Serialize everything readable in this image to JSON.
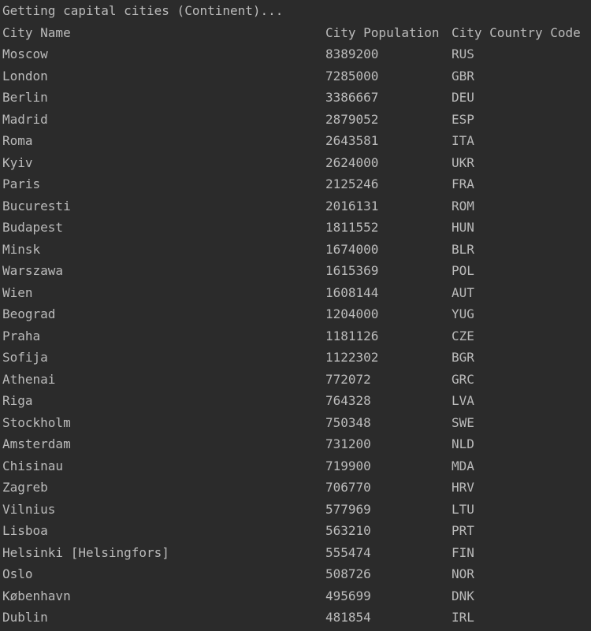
{
  "console": {
    "status_line": "Getting capital cities (Continent)...",
    "headers": {
      "name": "City Name",
      "population": "City Population",
      "code": "City Country Code"
    },
    "rows": [
      {
        "name": "Moscow",
        "population": "8389200",
        "code": "RUS"
      },
      {
        "name": "London",
        "population": "7285000",
        "code": "GBR"
      },
      {
        "name": "Berlin",
        "population": "3386667",
        "code": "DEU"
      },
      {
        "name": "Madrid",
        "population": "2879052",
        "code": "ESP"
      },
      {
        "name": "Roma",
        "population": "2643581",
        "code": "ITA"
      },
      {
        "name": "Kyiv",
        "population": "2624000",
        "code": "UKR"
      },
      {
        "name": "Paris",
        "population": "2125246",
        "code": "FRA"
      },
      {
        "name": "Bucuresti",
        "population": "2016131",
        "code": "ROM"
      },
      {
        "name": "Budapest",
        "population": "1811552",
        "code": "HUN"
      },
      {
        "name": "Minsk",
        "population": "1674000",
        "code": "BLR"
      },
      {
        "name": "Warszawa",
        "population": "1615369",
        "code": "POL"
      },
      {
        "name": "Wien",
        "population": "1608144",
        "code": "AUT"
      },
      {
        "name": "Beograd",
        "population": "1204000",
        "code": "YUG"
      },
      {
        "name": "Praha",
        "population": "1181126",
        "code": "CZE"
      },
      {
        "name": "Sofija",
        "population": "1122302",
        "code": "BGR"
      },
      {
        "name": "Athenai",
        "population": "772072",
        "code": "GRC"
      },
      {
        "name": "Riga",
        "population": "764328",
        "code": "LVA"
      },
      {
        "name": "Stockholm",
        "population": "750348",
        "code": "SWE"
      },
      {
        "name": "Amsterdam",
        "population": "731200",
        "code": "NLD"
      },
      {
        "name": "Chisinau",
        "population": "719900",
        "code": "MDA"
      },
      {
        "name": "Zagreb",
        "population": "706770",
        "code": "HRV"
      },
      {
        "name": "Vilnius",
        "population": "577969",
        "code": "LTU"
      },
      {
        "name": "Lisboa",
        "population": "563210",
        "code": "PRT"
      },
      {
        "name": "Helsinki [Helsingfors]",
        "population": "555474",
        "code": "FIN"
      },
      {
        "name": "Oslo",
        "population": "508726",
        "code": "NOR"
      },
      {
        "name": "København",
        "population": "495699",
        "code": "DNK"
      },
      {
        "name": "Dublin",
        "population": "481854",
        "code": "IRL"
      }
    ]
  }
}
